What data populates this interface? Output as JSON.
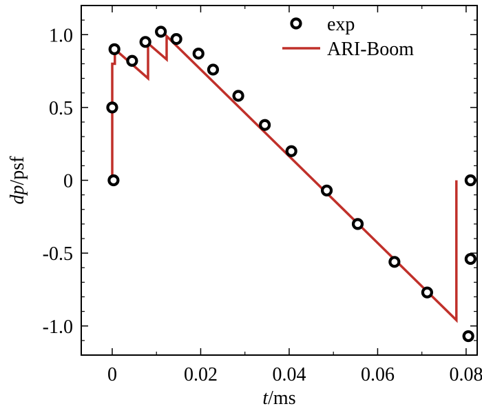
{
  "chart_data": {
    "type": "line",
    "xlabel": {
      "italic": "t",
      "rest": "/ms"
    },
    "ylabel": {
      "italic": "dp",
      "rest": "/psf"
    },
    "xlim": [
      -0.007,
      0.0825
    ],
    "ylim": [
      -1.2,
      1.2
    ],
    "xticks": [
      0,
      0.02,
      0.04,
      0.06,
      0.08
    ],
    "xtick_labels": [
      "0",
      "0.02",
      "0.04",
      "0.06",
      "0.08"
    ],
    "yticks": [
      -1.0,
      -0.5,
      0,
      0.5,
      1.0
    ],
    "ytick_labels": [
      "-1.0",
      "-0.5",
      "0",
      "0.5",
      "1.0"
    ],
    "legend_position": "top-right",
    "series": [
      {
        "name": "exp",
        "kind": "scatter",
        "color": "#000000",
        "marker": "open-circle",
        "points": [
          [
            0.0,
            0.5
          ],
          [
            0.0003,
            0.0
          ],
          [
            0.0005,
            0.9
          ],
          [
            0.0045,
            0.82
          ],
          [
            0.0075,
            0.95
          ],
          [
            0.011,
            1.02
          ],
          [
            0.0145,
            0.97
          ],
          [
            0.0195,
            0.87
          ],
          [
            0.0228,
            0.76
          ],
          [
            0.0285,
            0.58
          ],
          [
            0.0345,
            0.38
          ],
          [
            0.0405,
            0.2
          ],
          [
            0.0485,
            -0.07
          ],
          [
            0.0555,
            -0.3
          ],
          [
            0.0638,
            -0.56
          ],
          [
            0.0712,
            -0.77
          ],
          [
            0.081,
            0.0
          ],
          [
            0.081,
            -0.54
          ],
          [
            0.0805,
            -1.07
          ]
        ]
      },
      {
        "name": "ARI-Boom",
        "kind": "line",
        "color": "#c0302a",
        "points": [
          [
            0.0,
            0.0
          ],
          [
            0.0,
            0.8
          ],
          [
            0.0006,
            0.8
          ],
          [
            0.0006,
            0.9
          ],
          [
            0.0081,
            0.7
          ],
          [
            0.0081,
            0.94
          ],
          [
            0.0123,
            0.83
          ],
          [
            0.0123,
            0.99
          ],
          [
            0.0778,
            -0.96
          ],
          [
            0.0778,
            0.0
          ]
        ]
      }
    ]
  }
}
